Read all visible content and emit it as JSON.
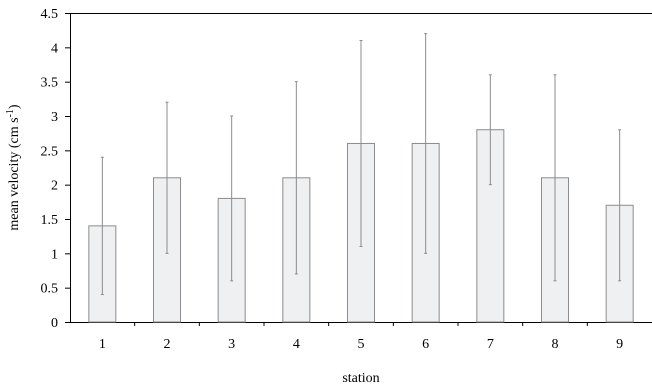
{
  "chart_data": {
    "type": "bar",
    "categories": [
      "1",
      "2",
      "3",
      "4",
      "5",
      "6",
      "7",
      "8",
      "9"
    ],
    "values": [
      1.4,
      2.1,
      1.8,
      2.1,
      2.6,
      2.6,
      2.8,
      2.1,
      1.7
    ],
    "error_low": [
      0.4,
      1.0,
      0.6,
      0.7,
      1.1,
      1.0,
      2.0,
      0.6,
      0.6
    ],
    "error_high": [
      2.4,
      3.2,
      3.0,
      3.5,
      4.1,
      4.2,
      3.6,
      3.6,
      2.8
    ],
    "xlabel": "station",
    "ylabel": {
      "main": "mean velocity (cm s",
      "sup": "-1",
      "close": ")"
    },
    "ylim": [
      0,
      4.5
    ],
    "yticks": [
      "0",
      "0.5",
      "1",
      "1.5",
      "2",
      "2.5",
      "3",
      "3.5",
      "4",
      "4.5"
    ],
    "grid": false,
    "colors": {
      "bar_fill": "#eff0f2",
      "bar_stroke": "#8c8c8c",
      "error_bar": "#8c8c8c",
      "axis": "#000000"
    }
  }
}
